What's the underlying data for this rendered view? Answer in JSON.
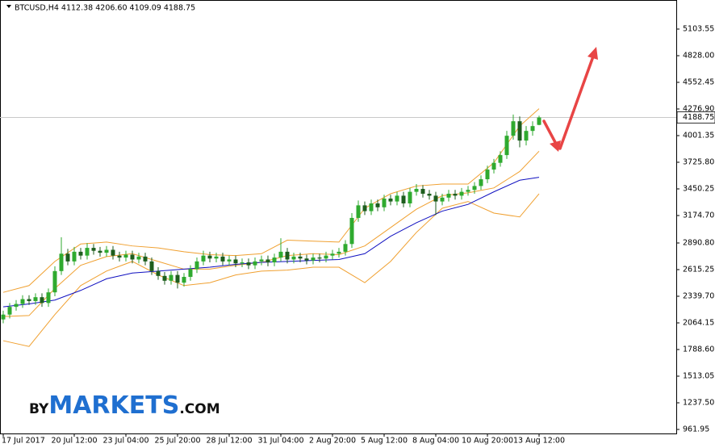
{
  "chart_data": {
    "type": "candlestick",
    "title": "BTCUSD,H4  4112.38 4206.60 4109.09 4188.75",
    "logo": {
      "prefix": "BY",
      "brand": "MARKETS",
      "suffix": ".COM"
    },
    "categories": [
      "17 Jul 2017",
      null,
      null,
      null,
      null,
      null,
      null,
      null,
      null,
      null,
      null,
      "20 Jul 12:00",
      null,
      null,
      null,
      null,
      null,
      null,
      null,
      "23 Jul 04:00",
      null,
      null,
      null,
      null,
      null,
      null,
      null,
      "25 Jul 20:00",
      null,
      null,
      null,
      null,
      null,
      null,
      null,
      "28 Jul 12:00",
      null,
      null,
      null,
      null,
      null,
      null,
      null,
      "31 Jul 04:00",
      null,
      null,
      null,
      null,
      null,
      null,
      null,
      "2 Aug 20:00",
      null,
      null,
      null,
      null,
      null,
      null,
      null,
      "5 Aug 12:00",
      null,
      null,
      null,
      null,
      null,
      null,
      null,
      "8 Aug 04:00",
      null,
      null,
      null,
      null,
      null,
      null,
      null,
      "10 Aug 20:00",
      null,
      null,
      null,
      null,
      null,
      null,
      null,
      "13 Aug 12:00"
    ],
    "open": [
      2100,
      2150,
      2230,
      2260,
      2310,
      2290,
      2330,
      2270,
      2380,
      2600,
      2780,
      2700,
      2800,
      2760,
      2840,
      2810,
      2790,
      2820,
      2760,
      2740,
      2770,
      2720,
      2750,
      2700,
      2600,
      2550,
      2500,
      2560,
      2480,
      2540,
      2620,
      2700,
      2760,
      2730,
      2750,
      2700,
      2720,
      2680,
      2690,
      2660,
      2700,
      2720,
      2690,
      2740,
      2800,
      2720,
      2750,
      2730,
      2710,
      2740,
      2730,
      2760,
      2780,
      2800,
      2880,
      3150,
      3280,
      3220,
      3300,
      3260,
      3350,
      3320,
      3380,
      3300,
      3420,
      3450,
      3400,
      3380,
      3320,
      3360,
      3400,
      3380,
      3420,
      3440,
      3480,
      3550,
      3650,
      3720,
      3800,
      4000,
      4150,
      3950,
      4050,
      4112.38
    ],
    "high": [
      2190,
      2270,
      2300,
      2350,
      2350,
      2370,
      2370,
      2420,
      2650,
      2950,
      2830,
      2850,
      2840,
      2890,
      2880,
      2850,
      2860,
      2860,
      2800,
      2810,
      2810,
      2790,
      2790,
      2740,
      2640,
      2590,
      2600,
      2600,
      2580,
      2660,
      2740,
      2810,
      2800,
      2790,
      2790,
      2760,
      2760,
      2730,
      2730,
      2740,
      2760,
      2760,
      2780,
      2940,
      2840,
      2790,
      2790,
      2770,
      2780,
      2780,
      2800,
      2820,
      2840,
      2920,
      3200,
      3330,
      3320,
      3340,
      3340,
      3390,
      3390,
      3420,
      3420,
      3460,
      3500,
      3490,
      3440,
      3420,
      3400,
      3440,
      3440,
      3460,
      3480,
      3520,
      3590,
      3690,
      3760,
      3840,
      4050,
      4220,
      4200,
      4100,
      4150,
      4206.6
    ],
    "low": [
      2060,
      2110,
      2190,
      2220,
      2250,
      2250,
      2230,
      2230,
      2340,
      2560,
      2660,
      2660,
      2720,
      2720,
      2770,
      2750,
      2750,
      2720,
      2700,
      2700,
      2680,
      2680,
      2660,
      2560,
      2510,
      2460,
      2460,
      2420,
      2440,
      2500,
      2580,
      2660,
      2690,
      2690,
      2660,
      2660,
      2640,
      2640,
      2620,
      2620,
      2660,
      2650,
      2650,
      2700,
      2680,
      2680,
      2690,
      2670,
      2670,
      2690,
      2690,
      2720,
      2740,
      2760,
      2840,
      3110,
      3180,
      3180,
      3220,
      3220,
      3280,
      3280,
      3260,
      3260,
      3380,
      3360,
      3340,
      3180,
      3280,
      3320,
      3340,
      3340,
      3380,
      3400,
      3440,
      3510,
      3610,
      3680,
      3760,
      3960,
      3880,
      3900,
      4000,
      4109.09
    ],
    "close": [
      2150,
      2230,
      2260,
      2310,
      2290,
      2330,
      2270,
      2380,
      2600,
      2780,
      2700,
      2800,
      2760,
      2840,
      2810,
      2790,
      2820,
      2760,
      2740,
      2770,
      2720,
      2750,
      2700,
      2600,
      2550,
      2500,
      2560,
      2480,
      2540,
      2620,
      2700,
      2760,
      2730,
      2750,
      2700,
      2720,
      2680,
      2690,
      2660,
      2700,
      2720,
      2690,
      2740,
      2800,
      2720,
      2750,
      2730,
      2710,
      2740,
      2730,
      2760,
      2780,
      2800,
      2880,
      3150,
      3280,
      3220,
      3300,
      3260,
      3350,
      3320,
      3380,
      3300,
      3420,
      3450,
      3400,
      3380,
      3320,
      3360,
      3400,
      3380,
      3420,
      3440,
      3480,
      3550,
      3650,
      3720,
      3800,
      4000,
      4150,
      3950,
      4050,
      4100,
      4188.75
    ],
    "up_color": "#2faa2f",
    "down_color": "#1d5e1d",
    "indicators": {
      "x": [
        0,
        4,
        8,
        12,
        16,
        20,
        24,
        28,
        32,
        36,
        40,
        44,
        48,
        52,
        56,
        60,
        64,
        68,
        72,
        76,
        80,
        83
      ],
      "series": [
        {
          "color": "#f0a030",
          "values": [
            2380,
            2450,
            2700,
            2880,
            2900,
            2860,
            2840,
            2800,
            2770,
            2760,
            2780,
            2920,
            2910,
            2900,
            3250,
            3400,
            3480,
            3500,
            3500,
            3720,
            4100,
            4280
          ]
        },
        {
          "color": "#f0a030",
          "values": [
            2130,
            2140,
            2420,
            2660,
            2750,
            2780,
            2700,
            2620,
            2620,
            2660,
            2690,
            2760,
            2780,
            2770,
            2860,
            3050,
            3240,
            3380,
            3410,
            3460,
            3630,
            3840
          ]
        },
        {
          "color": "#f0a030",
          "values": [
            1880,
            1820,
            2150,
            2450,
            2600,
            2700,
            2560,
            2450,
            2480,
            2560,
            2600,
            2610,
            2640,
            2640,
            2480,
            2700,
            3000,
            3250,
            3320,
            3200,
            3160,
            3400
          ]
        },
        {
          "color": "#1010c0",
          "values": [
            2230,
            2260,
            2300,
            2400,
            2520,
            2580,
            2600,
            2620,
            2640,
            2670,
            2690,
            2700,
            2710,
            2720,
            2780,
            2960,
            3100,
            3220,
            3290,
            3420,
            3540,
            3570
          ]
        }
      ]
    },
    "last_price": 4188.75,
    "ylim": [
      920.2,
      5362.4
    ],
    "yticks": [
      961.95,
      {
        "value": 1237.5,
        "label": "1237.50"
      },
      {
        "value": 1513.05,
        "label": "1513.05"
      },
      {
        "value": 1788.6,
        "label": "1788.60"
      },
      {
        "value": 2064.15,
        "label": "2064.15"
      },
      {
        "value": 2339.7,
        "label": "2339.70"
      },
      2615.25,
      {
        "value": 2890.8,
        "label": "2890.80"
      },
      {
        "value": 3174.7,
        "label": "3174.70"
      },
      3450.25,
      {
        "value": 3725.8,
        "label": "3725.80"
      },
      4001.35,
      {
        "value": 4276.9,
        "label": "4276.90"
      },
      4552.45,
      {
        "value": 4828,
        "label": "4828.00"
      },
      5103.55
    ]
  }
}
